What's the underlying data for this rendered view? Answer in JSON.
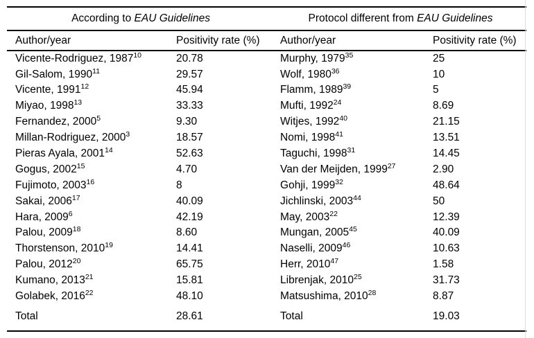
{
  "colors": {
    "background": "#ffffff",
    "text": "#000000",
    "rule": "#000000"
  },
  "table": {
    "groups": [
      {
        "title_prefix": "According to ",
        "title_italic": "EAU Guidelines",
        "col_author": "Author/year",
        "col_rate": "Positivity rate (%)",
        "rows": [
          {
            "author": "Vicente-Rodriguez, 1987",
            "ref": "10",
            "value": "20.78"
          },
          {
            "author": "Gil-Salom, 1990",
            "ref": "11",
            "value": "29.57"
          },
          {
            "author": "Vicente, 1991",
            "ref": "12",
            "value": "45.94"
          },
          {
            "author": "Miyao, 1998",
            "ref": "13",
            "value": "33.33"
          },
          {
            "author": "Fernandez, 2000",
            "ref": "5",
            "value": "9.30"
          },
          {
            "author": "Millan-Rodriguez, 2000",
            "ref": "3",
            "value": "18.57"
          },
          {
            "author": "Pieras Ayala, 2001",
            "ref": "14",
            "value": "52.63"
          },
          {
            "author": "Gogus, 2002",
            "ref": "15",
            "value": "4.70"
          },
          {
            "author": "Fujimoto, 2003",
            "ref": "16",
            "value": "8"
          },
          {
            "author": "Sakai, 2006",
            "ref": "17",
            "value": "40.09"
          },
          {
            "author": "Hara, 2009",
            "ref": "6",
            "value": "42.19"
          },
          {
            "author": "Palou, 2009",
            "ref": "18",
            "value": "8.60"
          },
          {
            "author": "Thorstenson, 2010",
            "ref": "19",
            "value": "14.41"
          },
          {
            "author": "Palou, 2012",
            "ref": "20",
            "value": "65.75"
          },
          {
            "author": "Kumano, 2013",
            "ref": "21",
            "value": "15.81"
          },
          {
            "author": "Golabek, 2016",
            "ref": "22",
            "value": "48.10"
          }
        ],
        "total_label": "Total",
        "total_value": "28.61"
      },
      {
        "title_prefix": "Protocol different from ",
        "title_italic": "EAU Guidelines",
        "col_author": "Author/year",
        "col_rate": "Positivity rate (%)",
        "rows": [
          {
            "author": "Murphy, 1979",
            "ref": "35",
            "value": "25"
          },
          {
            "author": "Wolf, 1980",
            "ref": "36",
            "value": "10"
          },
          {
            "author": "Flamm, 1989",
            "ref": "39",
            "value": "5"
          },
          {
            "author": "Mufti, 1992",
            "ref": "24",
            "value": "8.69"
          },
          {
            "author": "Witjes, 1992",
            "ref": "40",
            "value": "21.15"
          },
          {
            "author": "Nomi, 1998",
            "ref": "41",
            "value": "13.51"
          },
          {
            "author": "Taguchi, 1998",
            "ref": "31",
            "value": "14.45"
          },
          {
            "author": "Van der Meijden, 1999",
            "ref": "27",
            "value": "2.90"
          },
          {
            "author": "Gohji, 1999",
            "ref": "32",
            "value": "48.64"
          },
          {
            "author": "Jichlinski, 2003",
            "ref": "44",
            "value": "50"
          },
          {
            "author": "May, 2003",
            "ref": "22",
            "value": "12.39"
          },
          {
            "author": "Mungan, 2005",
            "ref": "45",
            "value": "40.09"
          },
          {
            "author": "Naselli, 2009",
            "ref": "46",
            "value": "10.63"
          },
          {
            "author": "Herr, 2010",
            "ref": "47",
            "value": "1.58"
          },
          {
            "author": "Librenjak, 2010",
            "ref": "25",
            "value": "31.73"
          },
          {
            "author": "Matsushima, 2010",
            "ref": "28",
            "value": "8.87"
          }
        ],
        "total_label": "Total",
        "total_value": "19.03"
      }
    ]
  }
}
